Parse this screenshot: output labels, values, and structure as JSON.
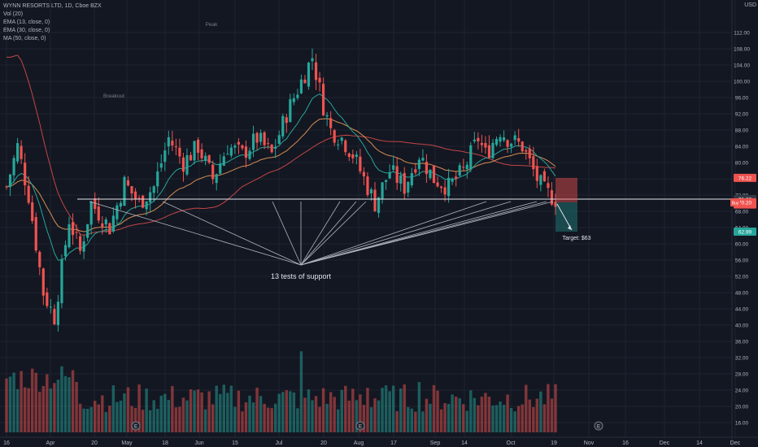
{
  "legend": {
    "title": "WYNN RESORTS LTD, 1D, Cboe BZX",
    "lines": [
      "Vol (20)",
      "EMA (13, close, 0)",
      "EMA (30, close, 0)",
      "MA (50, close, 0)"
    ]
  },
  "currency": "USD",
  "colors": {
    "background": "#131722",
    "up": "#26a69a",
    "down": "#ef5350",
    "ema13": "#26a69a",
    "ema30": "#f7a35c",
    "ma50": "#ef5350",
    "grid": "#1f2330",
    "text": "#b2b5be",
    "support": "#e0e3eb"
  },
  "chart_data": {
    "type": "candlestick",
    "title": "WYNN RESORTS LTD, 1D, Cboe BZX",
    "x_ticks": [
      "16",
      "Apr",
      "20",
      "May",
      "18",
      "Jun",
      "15",
      "Jul",
      "20",
      "Aug",
      "17",
      "Sep",
      "14",
      "Oct",
      "19",
      "Nov",
      "16",
      "Dec",
      "14",
      "Dec"
    ],
    "y_ticks": [
      16,
      20,
      24,
      28,
      32,
      36,
      40,
      44,
      48,
      52,
      56,
      60,
      64,
      68,
      72,
      76,
      80,
      84,
      88,
      92,
      96,
      100,
      104,
      108,
      112
    ],
    "ylim": [
      14,
      116
    ],
    "price_tags": [
      {
        "text": "76.22",
        "value": 76.22,
        "color": "#ef5350"
      },
      {
        "text": "71.00",
        "value": 71.0,
        "color": "#363a45"
      },
      {
        "text": "69.67",
        "value": 69.67,
        "color": "#ef5350"
      },
      {
        "text": "70.20",
        "value": 70.2,
        "color": "#ef5350"
      },
      {
        "text": "62.99",
        "value": 62.99,
        "color": "#26a69a"
      }
    ],
    "symbol_tag": "Buy",
    "support_level": 71.0,
    "annotation": "13 tests of support",
    "target_label": "Target: $63",
    "target_value": 63,
    "stop_value": 76.22,
    "entry_value": 70.2,
    "small_labels": [
      "Breakout",
      "Peak"
    ],
    "events": [
      "E",
      "E",
      "E"
    ]
  }
}
